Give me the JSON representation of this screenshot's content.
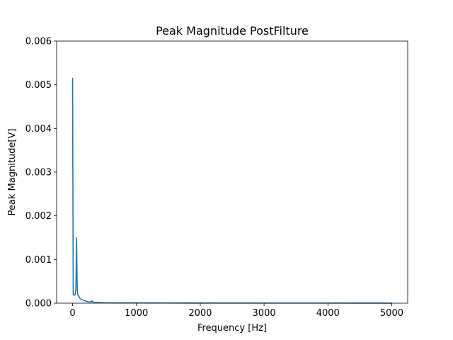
{
  "chart_data": {
    "type": "line",
    "title": "Peak Magnitude PostFilture",
    "xlabel": "Frequency [Hz]",
    "ylabel": "Peak Magnitude[V]",
    "xlim": [
      -250,
      5250
    ],
    "ylim": [
      0,
      0.006
    ],
    "xticks": [
      0,
      1000,
      2000,
      3000,
      4000,
      5000
    ],
    "xtick_labels": [
      "0",
      "1000",
      "2000",
      "3000",
      "4000",
      "5000"
    ],
    "yticks": [
      0,
      0.001,
      0.002,
      0.003,
      0.004,
      0.005,
      0.006
    ],
    "ytick_labels": [
      "0.000",
      "0.001",
      "0.002",
      "0.003",
      "0.004",
      "0.005",
      "0.006"
    ],
    "grid": false,
    "legend": "none",
    "series": [
      {
        "color": "#1f77b4",
        "x": [
          0,
          10,
          20,
          30,
          40,
          50,
          55,
          60,
          62,
          65,
          70,
          75,
          80,
          90,
          100,
          120,
          150,
          200,
          250,
          290,
          300,
          310,
          350,
          400,
          500,
          700,
          1000,
          1500,
          2000,
          3000,
          4000,
          5000
        ],
        "y": [
          0.00515,
          0.0002,
          0.00018,
          0.00019,
          0.0002,
          0.0003,
          0.0006,
          0.0012,
          0.0015,
          0.0012,
          0.0006,
          0.0003,
          0.0002,
          0.00017,
          0.00015,
          0.0001,
          8e-05,
          5e-05,
          3e-05,
          3e-05,
          6e-05,
          3e-05,
          2e-05,
          1.5e-05,
          1e-05,
          8e-06,
          5e-06,
          4e-06,
          3e-06,
          2e-06,
          2e-06,
          1e-06
        ]
      }
    ]
  }
}
